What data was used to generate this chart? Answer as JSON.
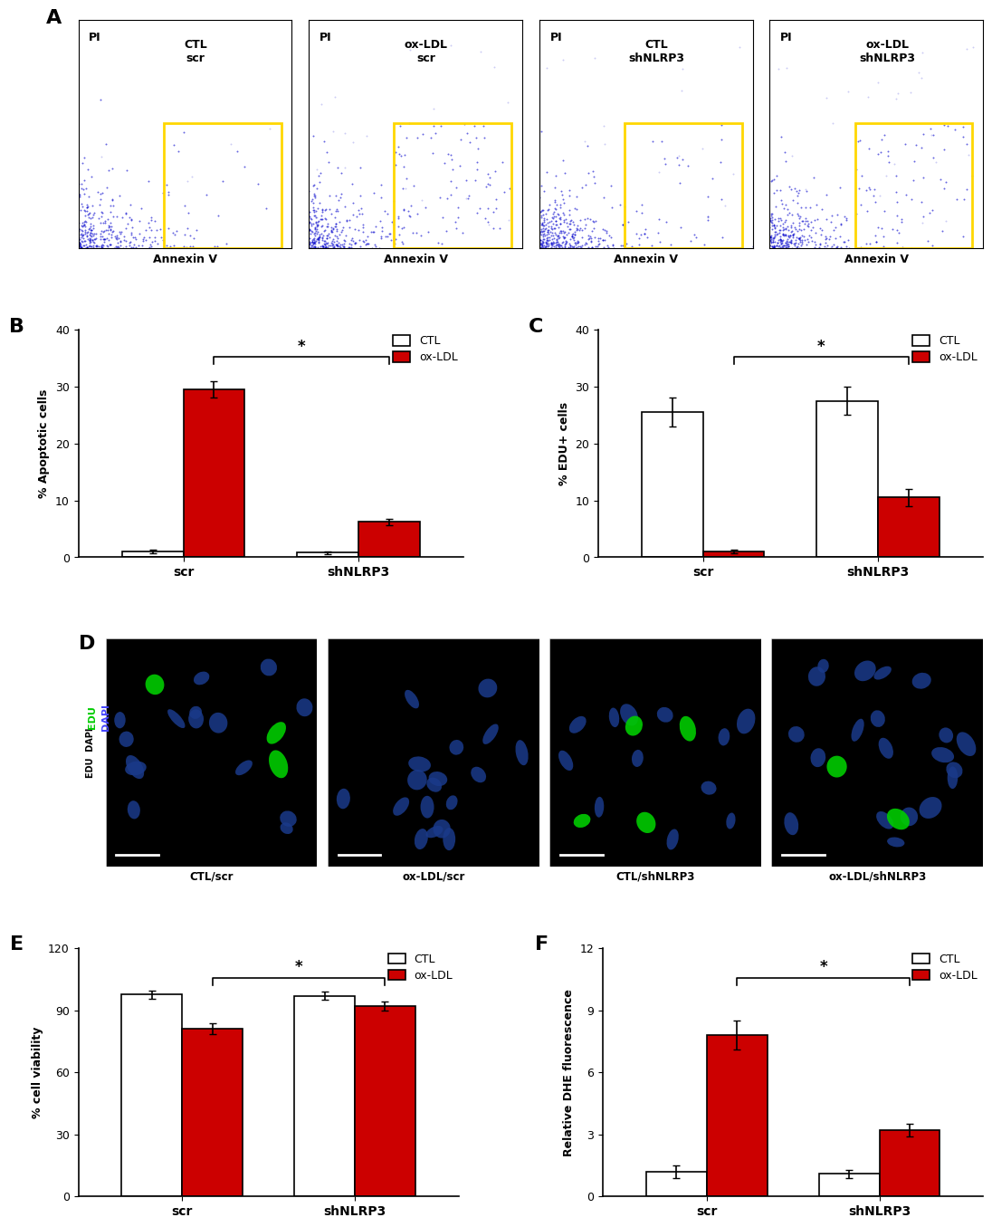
{
  "panel_A_labels": [
    "CTL\nscr",
    "ox-LDL\nscr",
    "CTL\nshNLRP3",
    "ox-LDL\nshNLRP3"
  ],
  "panel_A_xlabel": "Annexin V",
  "panel_A_ylabel": "PI",
  "panel_B_title": "B",
  "panel_B_ylabel": "% Apoptotic cells",
  "panel_B_xlabel_groups": [
    "scr",
    "shNLRP3"
  ],
  "panel_B_CTL": [
    1.0,
    0.8
  ],
  "panel_B_oxLDL": [
    29.5,
    6.2
  ],
  "panel_B_CTL_err": [
    0.3,
    0.2
  ],
  "panel_B_oxLDL_err": [
    1.5,
    0.5
  ],
  "panel_B_ylim": [
    0,
    40
  ],
  "panel_B_yticks": [
    0,
    10,
    20,
    30,
    40
  ],
  "panel_C_title": "C",
  "panel_C_ylabel": "% EDU+ cells",
  "panel_C_xlabel_groups": [
    "scr",
    "shNLRP3"
  ],
  "panel_C_CTL": [
    25.5,
    27.5
  ],
  "panel_C_oxLDL": [
    1.0,
    10.5
  ],
  "panel_C_CTL_err": [
    2.5,
    2.5
  ],
  "panel_C_oxLDL_err": [
    0.3,
    1.5
  ],
  "panel_C_ylim": [
    0,
    40
  ],
  "panel_C_yticks": [
    0,
    10,
    20,
    30,
    40
  ],
  "panel_D_labels": [
    "CTL/scr",
    "ox-LDL/scr",
    "CTL/shNLRP3",
    "ox-LDL/shNLRP3"
  ],
  "panel_E_title": "E",
  "panel_E_ylabel": "% cell viability",
  "panel_E_xlabel_groups": [
    "scr",
    "shNLRP3"
  ],
  "panel_E_CTL": [
    97.5,
    97.0
  ],
  "panel_E_oxLDL": [
    81.0,
    92.0
  ],
  "panel_E_CTL_err": [
    2.0,
    2.0
  ],
  "panel_E_oxLDL_err": [
    2.5,
    2.0
  ],
  "panel_E_ylim": [
    0,
    120
  ],
  "panel_E_yticks": [
    0,
    30,
    60,
    90,
    120
  ],
  "panel_F_title": "F",
  "panel_F_ylabel": "Relative DHE fluorescence",
  "panel_F_xlabel_groups": [
    "scr",
    "shNLRP3"
  ],
  "panel_F_CTL": [
    1.2,
    1.1
  ],
  "panel_F_oxLDL": [
    7.8,
    3.2
  ],
  "panel_F_CTL_err": [
    0.3,
    0.2
  ],
  "panel_F_oxLDL_err": [
    0.7,
    0.3
  ],
  "panel_F_ylim": [
    0,
    12
  ],
  "panel_F_yticks": [
    0,
    3,
    6,
    9,
    12
  ],
  "bar_width": 0.35,
  "ctl_color": "white",
  "oxldl_color": "#CC0000",
  "ctl_edge": "black",
  "oxldl_edge": "black",
  "dot_color": "#0000CC",
  "scatter_alpha": 0.6,
  "scatter_size": 2,
  "sig_bracket_color": "black",
  "sig_star": "*"
}
